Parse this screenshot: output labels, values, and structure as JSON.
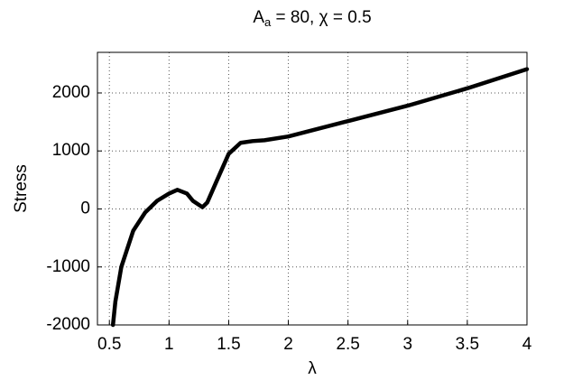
{
  "chart_data": {
    "type": "line",
    "title": {
      "main": "A",
      "subscript": "a",
      "rest": " = 80, χ = 0.5"
    },
    "x_label": "λ",
    "y_label": "Stress",
    "x": [
      0.53,
      0.55,
      0.6,
      0.7,
      0.8,
      0.9,
      1.0,
      1.07,
      1.15,
      1.2,
      1.28,
      1.32,
      1.4,
      1.5,
      1.6,
      1.7,
      1.8,
      2.0,
      2.5,
      3.0,
      3.5,
      4.0
    ],
    "series": [
      {
        "name": "Stress",
        "color": "#000000",
        "values": [
          -2000,
          -1600,
          -1000,
          -375,
          -60,
          140,
          265,
          330,
          265,
          140,
          30,
          110,
          485,
          950,
          1140,
          1170,
          1185,
          1250,
          1515,
          1780,
          2080,
          2410
        ]
      }
    ],
    "xlim": [
      0.4,
      4
    ],
    "ylim": [
      -2000,
      2700
    ],
    "xticks": [
      0.5,
      1,
      1.5,
      2,
      2.5,
      3,
      3.5,
      4
    ],
    "yticks": [
      -2000,
      -1000,
      0,
      1000,
      2000
    ],
    "grid": true
  }
}
